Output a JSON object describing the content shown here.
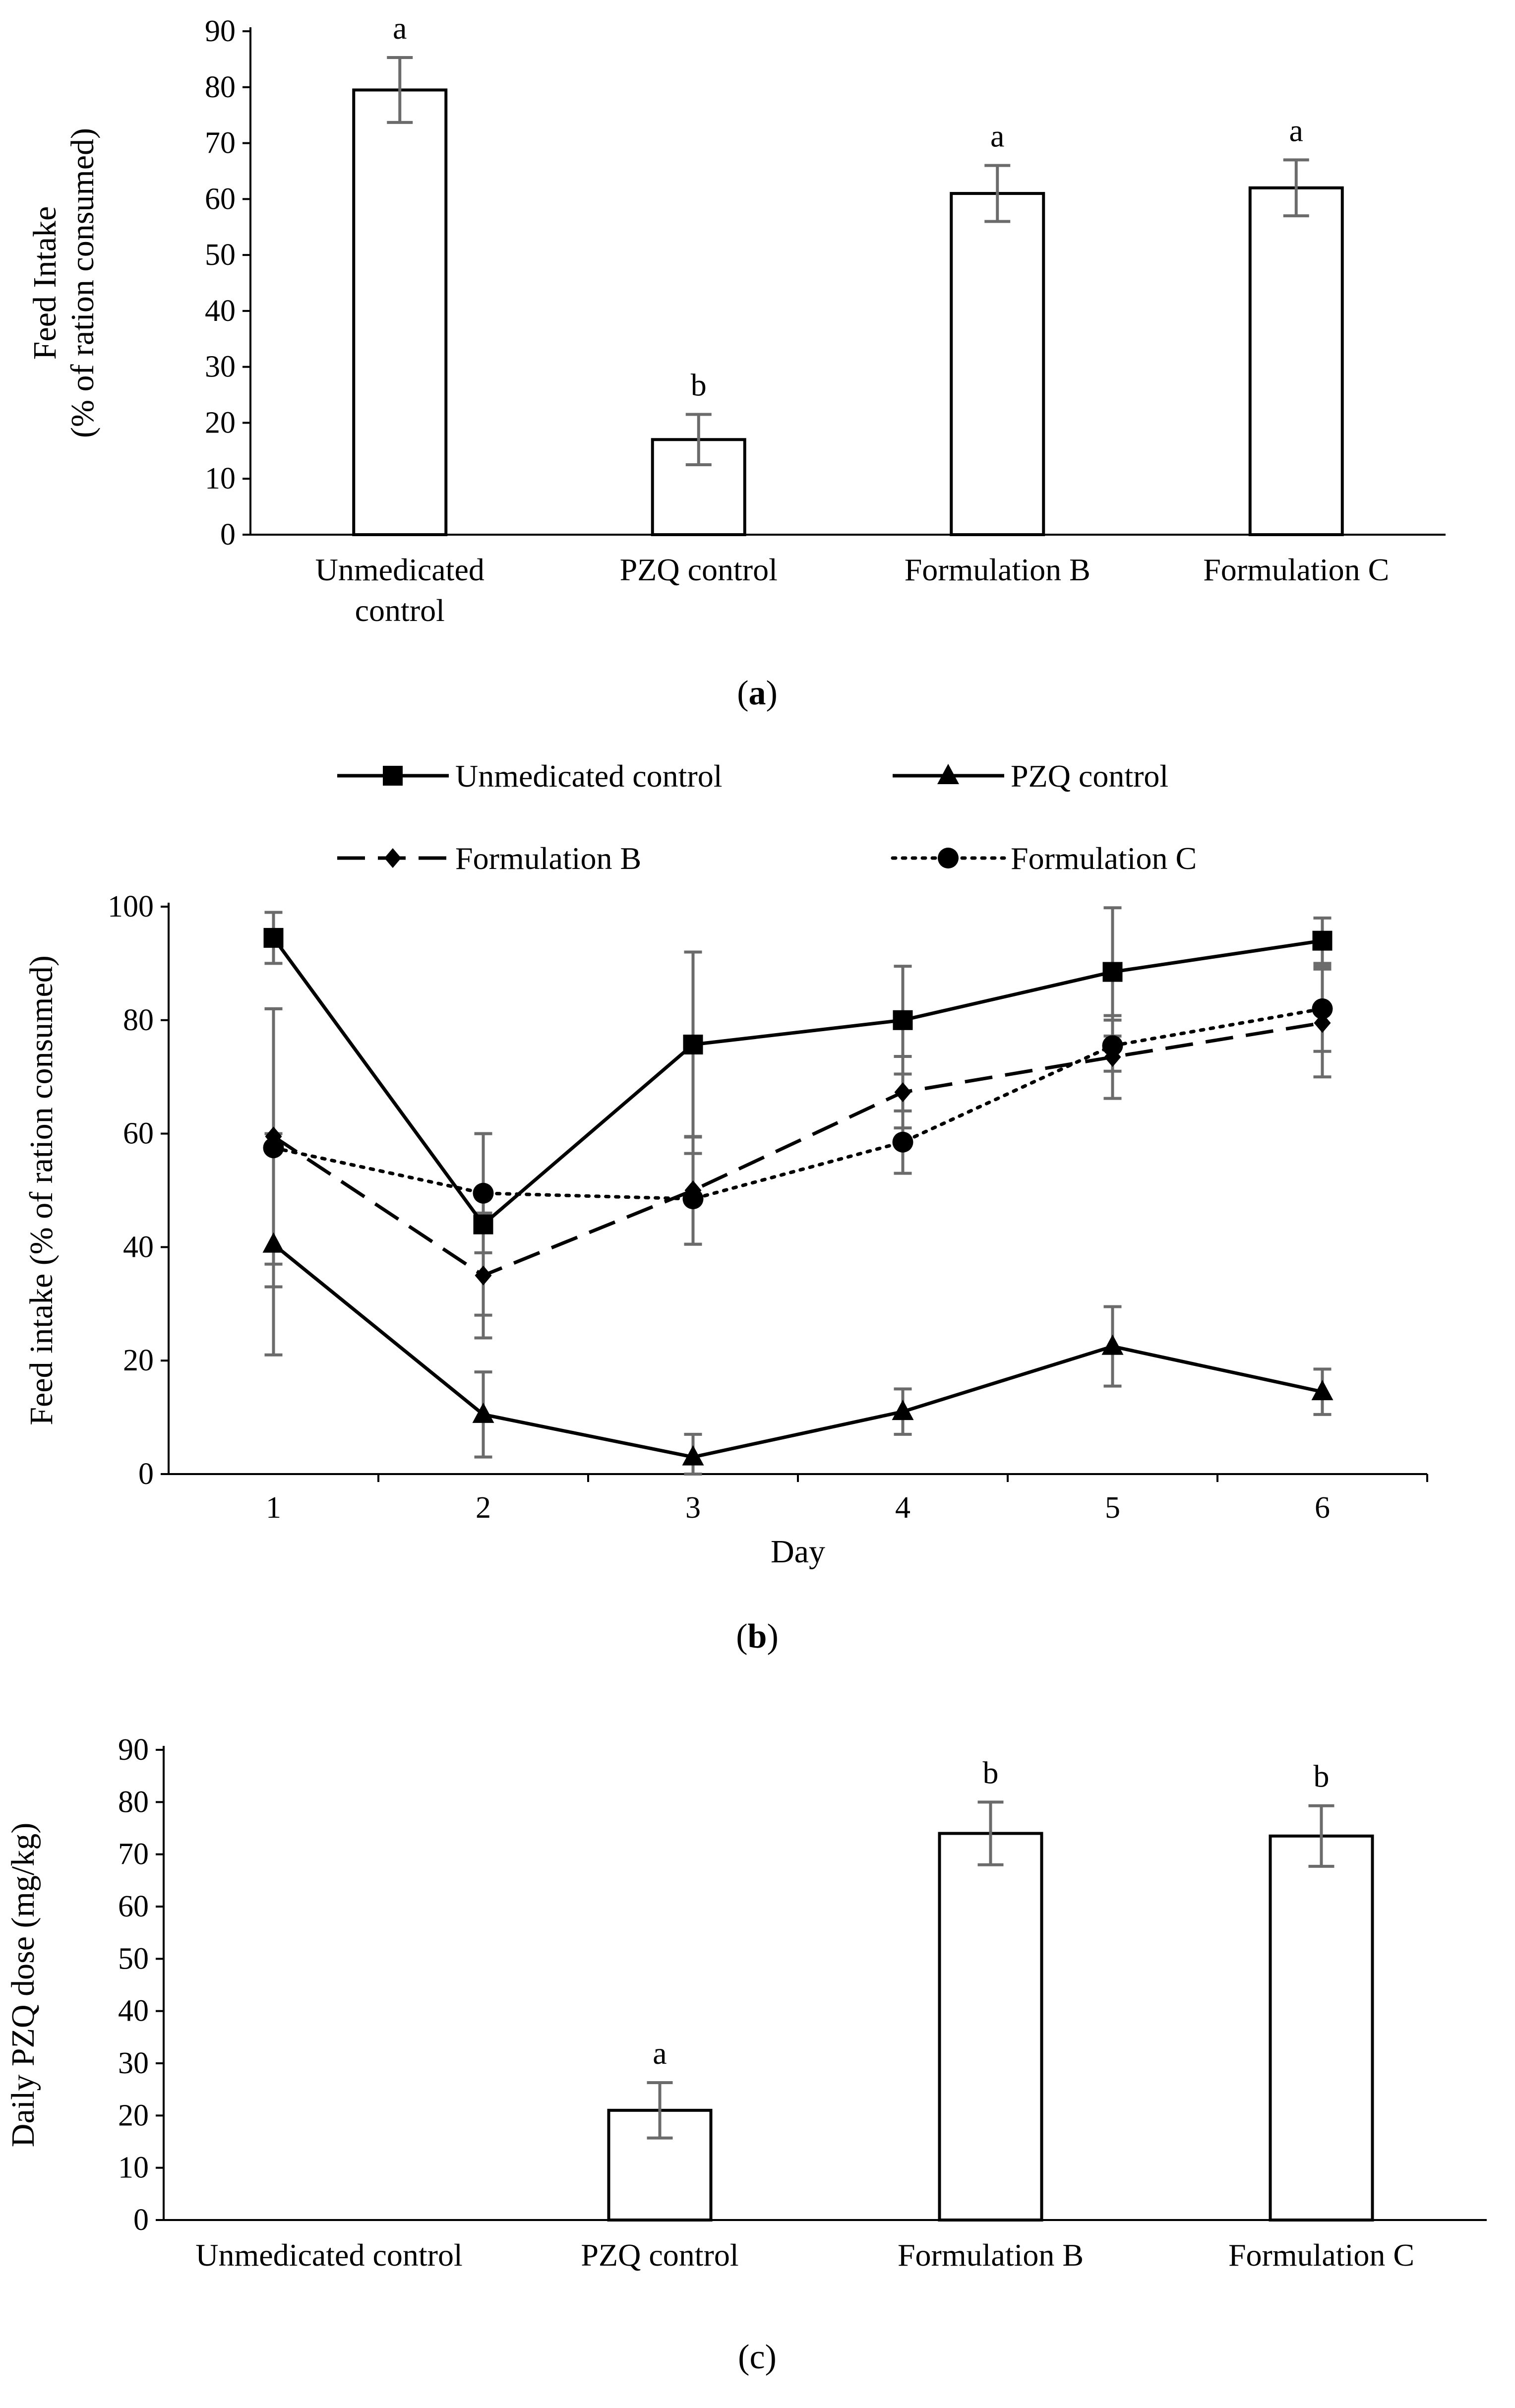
{
  "chart_data": [
    {
      "id": "a",
      "type": "bar",
      "panel_label": "a",
      "ylabel": "Feed Intake (% of ration consumed)",
      "ylabel_lines": [
        "Feed Intake",
        "(% of ration consumed)"
      ],
      "ylim": [
        0,
        90
      ],
      "yticks": [
        "0",
        "10",
        "20",
        "30",
        "40",
        "50",
        "60",
        "70",
        "80",
        "90"
      ],
      "categories": [
        {
          "label": "Unmedicated control",
          "lines": [
            "Unmedicated",
            "control"
          ]
        },
        {
          "label": "PZQ control",
          "lines": [
            "PZQ control"
          ]
        },
        {
          "label": "Formulation B",
          "lines": [
            "Formulation B"
          ]
        },
        {
          "label": "Formulation C",
          "lines": [
            "Formulation C"
          ]
        }
      ],
      "values": [
        79.5,
        17,
        61,
        62
      ],
      "errors": [
        5.8,
        4.5,
        5,
        5
      ],
      "significance": [
        "a",
        "b",
        "a",
        "a"
      ]
    },
    {
      "id": "b",
      "type": "line",
      "panel_label": "b",
      "xlabel": "Day",
      "ylabel": "Feed intake (% of ration consumed)",
      "ylim": [
        0,
        100
      ],
      "yticks": [
        "0",
        "20",
        "40",
        "60",
        "80",
        "100"
      ],
      "x": [
        1,
        2,
        3,
        4,
        5,
        6
      ],
      "xticks": [
        "1",
        "2",
        "3",
        "4",
        "5",
        "6"
      ],
      "series": [
        {
          "name": "Unmedicated control",
          "marker": "square",
          "dash": "solid",
          "values": [
            94.5,
            44,
            75.7,
            80,
            88.5,
            94
          ],
          "errors": [
            4.5,
            16,
            16.3,
            9.5,
            11.3,
            4
          ]
        },
        {
          "name": "PZQ control",
          "marker": "triangle",
          "dash": "solid",
          "values": [
            40.5,
            10.5,
            3,
            11,
            22.5,
            14.5
          ],
          "errors": [
            19.5,
            7.5,
            4,
            4,
            7,
            4
          ]
        },
        {
          "name": "Formulation B",
          "marker": "diamond",
          "dash": "long-dash",
          "values": [
            59.5,
            35,
            50,
            67.3,
            73.5,
            79.5
          ],
          "errors": [
            22.5,
            11,
            9.5,
            6.3,
            7.3,
            9.5
          ]
        },
        {
          "name": "Formulation C",
          "marker": "circle",
          "dash": "dotted",
          "values": [
            57.5,
            49.5,
            48.5,
            58.5,
            75.5,
            82
          ],
          "errors": [
            24.5,
            10.5,
            8,
            5.5,
            4.5,
            7.5
          ]
        }
      ],
      "legend": {
        "placement": "top",
        "columns": 2
      }
    },
    {
      "id": "c",
      "type": "bar",
      "panel_label": "c",
      "ylabel": "Daily PZQ dose (mg/kg)",
      "ylim": [
        0,
        90
      ],
      "yticks": [
        "0",
        "10",
        "20",
        "30",
        "40",
        "50",
        "60",
        "70",
        "80",
        "90"
      ],
      "categories": [
        {
          "label": "Unmedicated control",
          "lines": [
            "Unmedicated control"
          ]
        },
        {
          "label": "PZQ control",
          "lines": [
            "PZQ control"
          ]
        },
        {
          "label": "Formulation B",
          "lines": [
            "Formulation B"
          ]
        },
        {
          "label": "Formulation C",
          "lines": [
            "Formulation C"
          ]
        }
      ],
      "values": [
        0,
        21,
        74,
        73.5
      ],
      "errors": [
        0,
        5.3,
        6,
        5.8
      ],
      "significance": [
        "",
        "a",
        "b",
        "b"
      ]
    }
  ],
  "colors": {
    "bar_fill": "#ffffff",
    "stroke": "#000000",
    "error_bar": "#6b6b6b"
  }
}
